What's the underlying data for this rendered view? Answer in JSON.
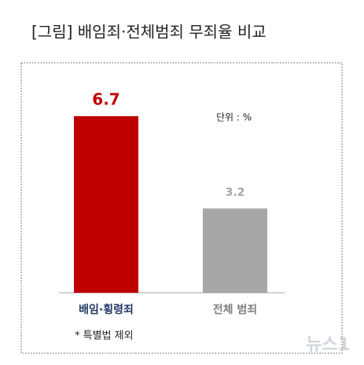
{
  "chart_data": {
    "type": "bar",
    "title": "[그림] 배임죄·전체범죄 무죄율 비교",
    "unit_label": "단위 : %",
    "footnote": "* 특별법 제외",
    "watermark": "뉴스1",
    "categories": [
      "배임·횡령죄",
      "전체 범죄"
    ],
    "values": [
      6.7,
      3.2
    ],
    "colors": [
      "#c00000",
      "#a6a6a6"
    ],
    "category_colors": [
      "#1f3864",
      "#7f7f7f"
    ]
  }
}
